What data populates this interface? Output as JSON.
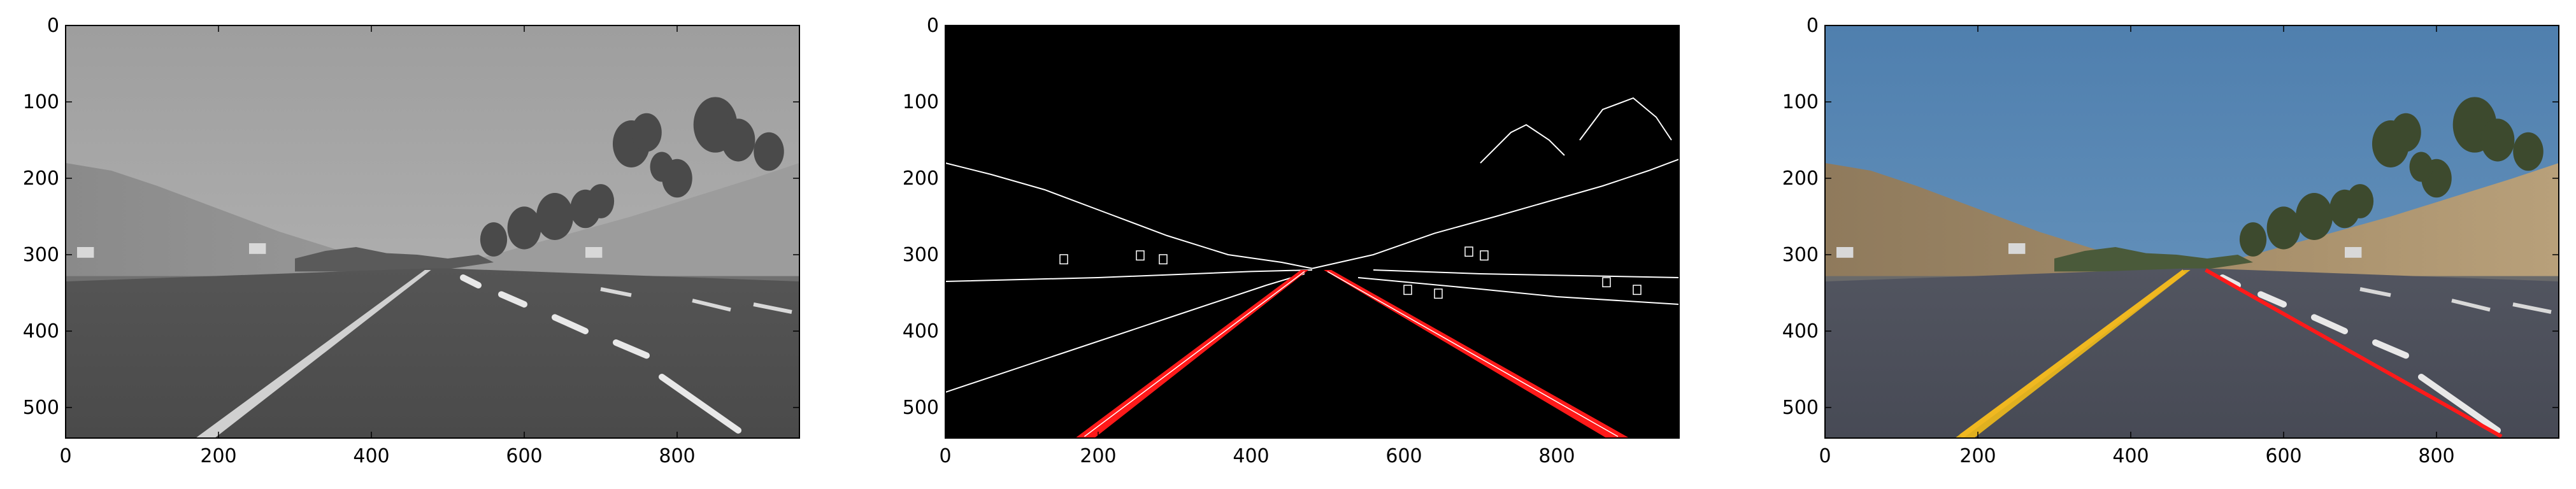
{
  "figure": {
    "panels": [
      {
        "name": "grayscale-road-image",
        "kind": "grayscale",
        "x_ticks": [
          "0",
          "200",
          "400",
          "600",
          "800"
        ],
        "y_ticks": [
          "0",
          "100",
          "200",
          "300",
          "400",
          "500"
        ],
        "x_tick_values": [
          0,
          200,
          400,
          600,
          800
        ],
        "y_tick_values": [
          0,
          100,
          200,
          300,
          400,
          500
        ],
        "xlim": [
          0,
          960
        ],
        "ylim": [
          540,
          0
        ]
      },
      {
        "name": "edge-detection-image",
        "kind": "edges",
        "x_ticks": [
          "0",
          "200",
          "400",
          "600",
          "800"
        ],
        "y_ticks": [
          "0",
          "100",
          "200",
          "300",
          "400",
          "500"
        ],
        "x_tick_values": [
          0,
          200,
          400,
          600,
          800
        ],
        "y_tick_values": [
          0,
          100,
          200,
          300,
          400,
          500
        ],
        "xlim": [
          0,
          960
        ],
        "ylim": [
          540,
          0
        ]
      },
      {
        "name": "color-lane-overlay-image",
        "kind": "color",
        "x_ticks": [
          "0",
          "200",
          "400",
          "600",
          "800"
        ],
        "y_ticks": [
          "0",
          "100",
          "200",
          "300",
          "400",
          "500"
        ],
        "x_tick_values": [
          0,
          200,
          400,
          600,
          800
        ],
        "y_tick_values": [
          0,
          100,
          200,
          300,
          400,
          500
        ],
        "xlim": [
          0,
          960
        ],
        "ylim": [
          540,
          0
        ]
      }
    ],
    "colors": {
      "lane_marker": "#ff1a1a",
      "left_lane_painted": "#e0b020",
      "sky_color": "#5a8ab5",
      "sky_gray": "#a8a8a8",
      "edge_line": "#ffffff",
      "edge_background": "#000000"
    }
  }
}
